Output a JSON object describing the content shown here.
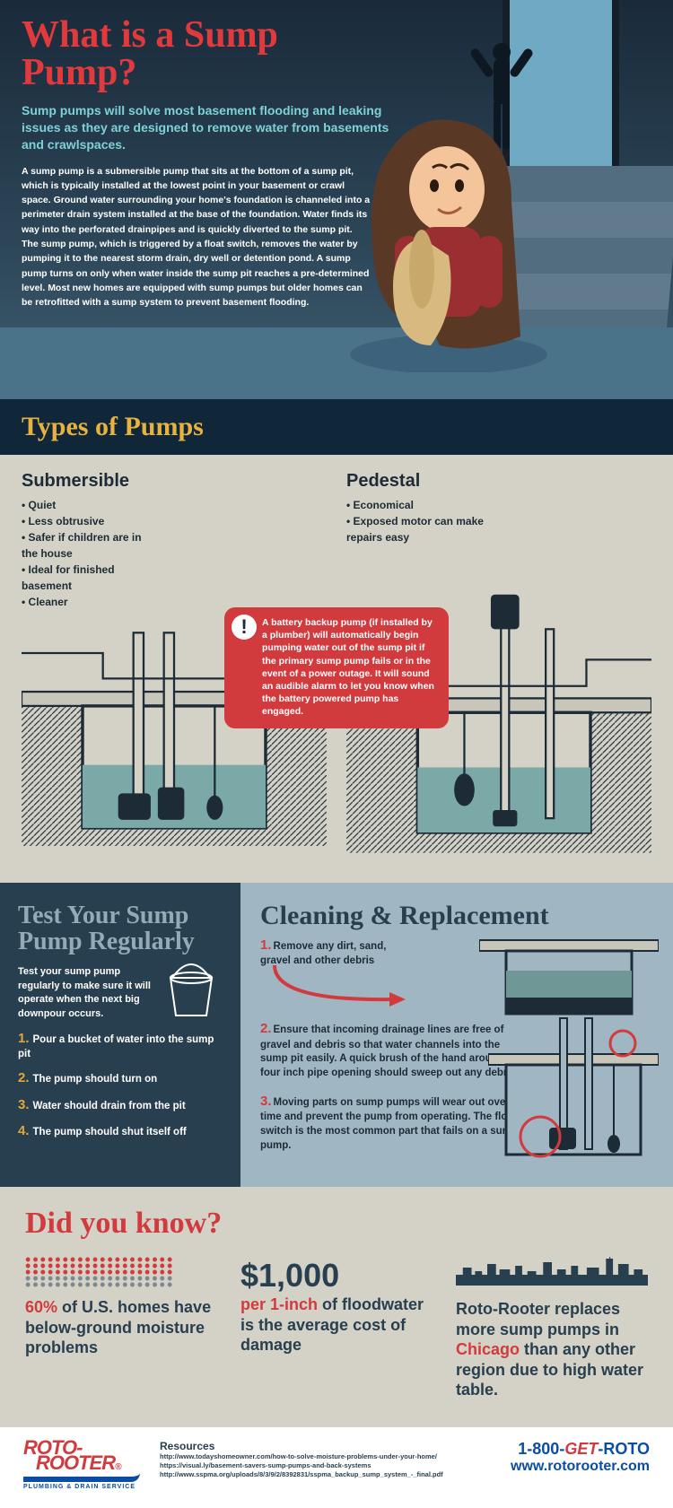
{
  "colors": {
    "red": "#d13b3e",
    "teal": "#7fd0d8",
    "heroTitle": "#e13a3d",
    "navy": "#283f4f",
    "gold": "#e7b23e",
    "blue": "#0b4da2",
    "beige": "#d4d2c7",
    "slate": "#a0b6c2",
    "darkBand": "#10273a"
  },
  "hero": {
    "title": "What is a Sump Pump?",
    "lede": "Sump pumps will solve most basement flooding and leaking issues as they are designed to remove water from basements and crawlspaces.",
    "body": "A sump pump is a submersible pump that sits at the bottom of a sump pit, which is typically installed at the lowest point in your basement or crawl space. Ground water surrounding your home's foundation is channeled into a perimeter drain system installed at the base of the foundation. Water finds its way into the perforated drainpipes and is quickly diverted to the sump pit. The sump pump, which is triggered by a float switch, removes the water by pumping it to the nearest storm drain, dry well or detention pond. A sump pump turns on only when water inside the sump pit reaches a pre-determined level. Most new homes are equipped with sump pumps but older homes can be retrofitted with a sump system to prevent basement flooding."
  },
  "types": {
    "heading": "Types of Pumps",
    "submersible": {
      "name": "Submersible",
      "bullets": [
        "Quiet",
        "Less obtrusive",
        "Safer if children are in the house",
        "Ideal for finished basement",
        "Cleaner"
      ]
    },
    "pedestal": {
      "name": "Pedestal",
      "bullets": [
        "Economical",
        "Exposed motor can make repairs easy"
      ]
    },
    "callout": "A battery backup pump (if installed by a plumber) will automatically begin pumping water out of the sump pit if the primary sump pump fails or in the event of a power outage. It will sound an audible alarm to let you know when the battery powered pump has engaged."
  },
  "test": {
    "title": "Test Your Sump Pump Regularly",
    "intro": "Test your sump pump regularly to make sure it will operate when the next big downpour occurs.",
    "steps": [
      "Pour a bucket of water into the sump pit",
      "The pump should turn on",
      "Water should drain from the pit",
      "The pump should shut itself off"
    ]
  },
  "clean": {
    "title": "Cleaning & Replacement",
    "steps": [
      "Remove any dirt, sand, gravel and other debris",
      "Ensure that incoming drainage lines are free of gravel and debris so that water channels into the sump pit easily. A quick brush of the hand around the four inch pipe opening should sweep out any debris.",
      "Moving parts on sump pumps will wear out over time and prevent the pump from operating. The float switch is the most common part that fails on a sump pump."
    ]
  },
  "dyk": {
    "title": "Did you know?",
    "fact1": {
      "pct": "60%",
      "rest": " of U.S. homes have below-ground moisture problems",
      "filled": 60,
      "total": 100
    },
    "fact2": {
      "amount": "$1,000",
      "line1": "per 1-inch",
      "line2": " of floodwater is the average cost of damage"
    },
    "fact3": {
      "pre": "Roto-Rooter replaces more sump pumps in ",
      "city": "Chicago",
      "post": " than any other region due to high water table."
    }
  },
  "footer": {
    "brand1": "ROTO-",
    "brand2": "ROOTER",
    "tag": "PLUMBING & DRAIN SERVICE",
    "resourcesLabel": "Resources",
    "resources": [
      "http://www.todayshomeowner.com/how-to-solve-moisture-problems-under-your-home/",
      "https://visual.ly/basement-savers-sump-pumps-and-back-systems",
      "http://www.sspma.org/uploads/8/3/9/2/8392831/sspma_backup_sump_system_-_final.pdf"
    ],
    "phone_pre": "1-800-",
    "phone_get": "GET",
    "phone_post": "-ROTO",
    "url": "www.rotorooter.com"
  }
}
